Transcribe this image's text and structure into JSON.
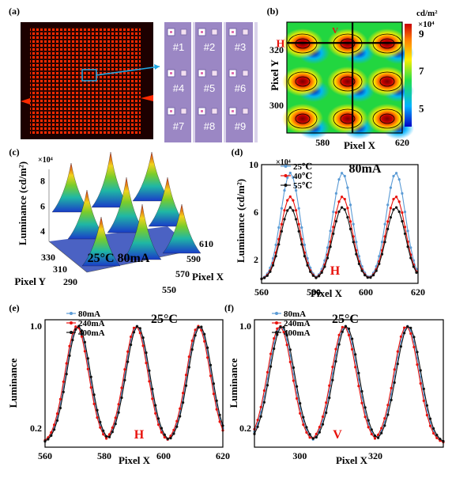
{
  "panel_labels": [
    "(a)",
    "(b)",
    "(c)",
    "(d)",
    "(e)",
    "(f)"
  ],
  "colors": {
    "blue": "#5b9bd5",
    "red": "#e8120c",
    "black": "#111111",
    "led_bg": "#1c0000",
    "led_dot": "#ff2a00",
    "zoom_bg": "#9b87c4",
    "zoom_line": "#1fa8e3"
  },
  "chart_data": [
    {
      "panel": "(a)",
      "type": "image",
      "zoom_cells": [
        "#1",
        "#2",
        "#3",
        "#4",
        "#5",
        "#6",
        "#7",
        "#8",
        "#9"
      ]
    },
    {
      "panel": "(b)",
      "type": "heatmap",
      "xlabel": "Pixel X",
      "ylabel": "Pixel Y",
      "xticks": [
        580,
        620
      ],
      "yticks": [
        320,
        300
      ],
      "xlim": [
        562,
        620
      ],
      "ylim": [
        290,
        330
      ],
      "colorbar_unit": "cd/m²",
      "colorbar_exp": "×10⁴",
      "colorbar_ticks": [
        9,
        7,
        5
      ],
      "marker_h": "H",
      "marker_v": "V"
    },
    {
      "panel": "(c)",
      "type": "surface",
      "zlabel": "Luminance (cd/m²)",
      "zexp": "×10⁴",
      "zticks": [
        8,
        6,
        4
      ],
      "xlabel": "Pixel X",
      "xticks": [
        610,
        590,
        570,
        550
      ],
      "ylabel": "Pixel Y",
      "yticks": [
        330,
        310,
        290
      ],
      "annotation": "25°C 80mA"
    },
    {
      "panel": "(d)",
      "type": "line",
      "xlabel": "Pixel X",
      "ylabel": "Luminance (cd/m²)",
      "yexp": "×10⁴",
      "xlim": [
        560,
        620
      ],
      "ylim": [
        0,
        10
      ],
      "xticks": [
        560,
        580,
        600,
        620
      ],
      "yticks": [
        2,
        6,
        10
      ],
      "annotation": "80mA",
      "marker": "H",
      "legend": "top-left",
      "series": [
        {
          "name": "25℃",
          "peak": 9.3,
          "min": 0.3
        },
        {
          "name": "40℃",
          "peak": 7.3,
          "min": 0.3
        },
        {
          "name": "55℃",
          "peak": 6.4,
          "min": 0.3
        }
      ]
    },
    {
      "panel": "(e)",
      "type": "line",
      "xlabel": "Pixel X",
      "ylabel": "Luminance",
      "xlim": [
        560,
        620
      ],
      "ylim": [
        0.05,
        1.05
      ],
      "xticks": [
        560,
        580,
        600,
        620
      ],
      "yticks": [
        0.2,
        1.0
      ],
      "annotation": "25°C",
      "marker": "H",
      "legend": "top-left",
      "series": [
        {
          "name": "80mA"
        },
        {
          "name": "240mA"
        },
        {
          "name": "400mA"
        }
      ]
    },
    {
      "panel": "(f)",
      "type": "line",
      "xlabel": "Pixel X",
      "ylabel": "Luminance",
      "xlim": [
        288,
        338
      ],
      "ylim": [
        0.05,
        1.05
      ],
      "xticks": [
        300,
        320
      ],
      "yticks": [
        0.2,
        1.0
      ],
      "annotation": "25°C",
      "marker": "V",
      "legend": "top-left",
      "series": [
        {
          "name": "80mA"
        },
        {
          "name": "240mA"
        },
        {
          "name": "400mA"
        }
      ]
    }
  ]
}
